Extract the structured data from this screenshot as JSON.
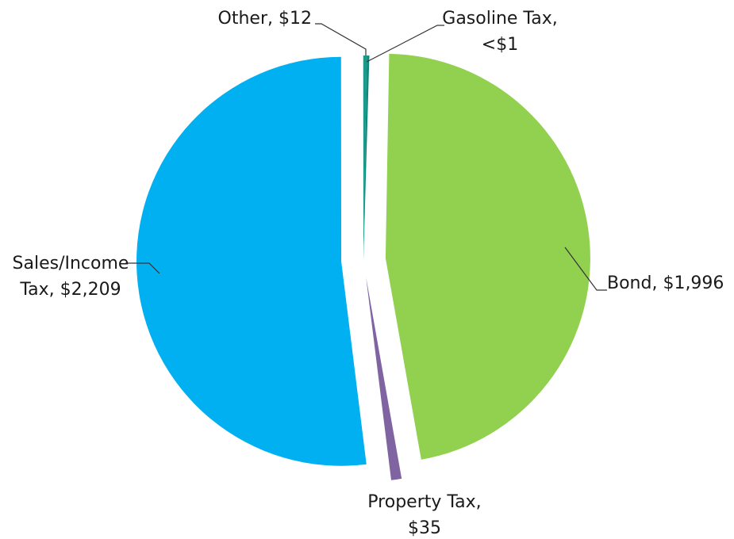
{
  "chart_data": {
    "type": "pie",
    "title": "",
    "units": "$",
    "slices": [
      {
        "name": "Bond",
        "label_lines": [
          "Bond, $1,996"
        ],
        "value": 1996,
        "color": "#92d050"
      },
      {
        "name": "Property Tax",
        "label_lines": [
          "Property Tax,",
          "$35"
        ],
        "value": 35,
        "color": "#8064a2"
      },
      {
        "name": "Sales/Income Tax",
        "label_lines": [
          "Sales/Income",
          "Tax, $2,209"
        ],
        "value": 2209,
        "color": "#00b0f0"
      },
      {
        "name": "Other",
        "label_lines": [
          "Other, $12"
        ],
        "value": 12,
        "color": "#1a9a8a"
      },
      {
        "name": "Gasoline Tax",
        "label_lines": [
          "Gasoline Tax,",
          "<$1"
        ],
        "value": 0.5,
        "color": "#0f8a7a"
      }
    ],
    "exploded": true,
    "legend": "none"
  }
}
